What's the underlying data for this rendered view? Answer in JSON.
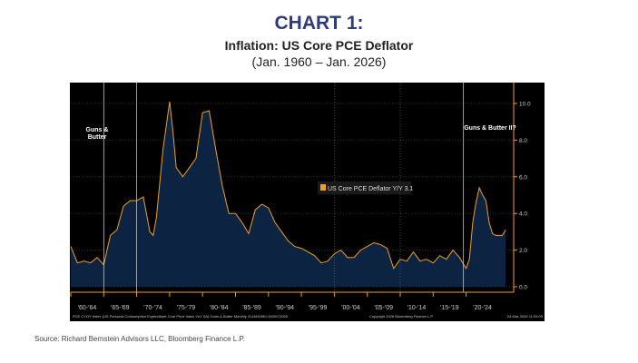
{
  "header": {
    "title": "CHART 1:",
    "subtitle": "Inflation: US Core PCE Deflator",
    "date_range": "(Jan. 1960 – Jan. 2026)"
  },
  "source": "Source: Richard Bernstein Advisors LLC, Bloomberg Finance L.P.",
  "chart_data": {
    "type": "area",
    "title": "Inflation: US Core PCE Deflator",
    "xlabel": "",
    "ylabel": "",
    "ylim": [
      0,
      10
    ],
    "yticks": [
      "0.0",
      "2.0",
      "4.0",
      "6.0",
      "8.0",
      "10.0"
    ],
    "xlim": [
      1960,
      2026
    ],
    "xtick_labels": [
      "'60-'64",
      "'65-'69",
      "'70-'74",
      "'75-'79",
      "'80-'84",
      "'85-'89",
      "'90-'94",
      "'95-'99",
      "'00-'04",
      "'05-'09",
      "'10-'14",
      "'15-'19",
      "'20-'24"
    ],
    "legend": {
      "label": "US Core PCE Deflator Y/Y",
      "last_value": "3.1",
      "position": "center-right"
    },
    "annotations": [
      "Guns & Butter",
      "Guns & Butter II?"
    ],
    "footer_left": "PCE CYOY Index (US Personal Consumption Expenditure Core Price Index YoY SA) Guns & Butter Monthly 31JAN1960-31DEC2026",
    "footer_mid": "Copyright 2026 Bloomberg Finance L.P.",
    "footer_right": "24-Mar-2026 11:05:09",
    "colors": {
      "line": "#f0a020",
      "fill": "#0c2442",
      "background": "#000000"
    },
    "series": [
      {
        "name": "US Core PCE Deflator Y/Y",
        "x": [
          1960,
          1961,
          1962,
          1963,
          1964,
          1965,
          1966,
          1967,
          1968,
          1969,
          1970,
          1971,
          1972,
          1972.5,
          1973,
          1974,
          1975,
          1975.5,
          1976,
          1977,
          1978,
          1979,
          1980,
          1981,
          1982,
          1983,
          1984,
          1985,
          1986,
          1987,
          1988,
          1989,
          1990,
          1991,
          1992,
          1993,
          1994,
          1995,
          1996,
          1997,
          1998,
          1999,
          2000,
          2001,
          2002,
          2003,
          2004,
          2005,
          2006,
          2007,
          2008,
          2009,
          2010,
          2011,
          2012,
          2013,
          2014,
          2015,
          2016,
          2017,
          2018,
          2019,
          2020,
          2020.5,
          2021,
          2021.5,
          2022,
          2022.5,
          2023,
          2023.5,
          2024,
          2024.5,
          2025,
          2025.5,
          2026
        ],
        "y": [
          2.2,
          1.3,
          1.4,
          1.3,
          1.6,
          1.2,
          2.8,
          3.1,
          4.4,
          4.7,
          4.7,
          4.9,
          3.0,
          2.8,
          3.8,
          7.5,
          10.1,
          8.5,
          6.5,
          6.0,
          6.5,
          7.0,
          9.5,
          9.6,
          7.5,
          5.5,
          4.0,
          4.0,
          3.5,
          2.9,
          4.2,
          4.5,
          4.3,
          3.5,
          3.0,
          2.5,
          2.2,
          2.1,
          1.9,
          1.7,
          1.3,
          1.4,
          1.8,
          2.0,
          1.6,
          1.6,
          2.0,
          2.2,
          2.4,
          2.3,
          2.1,
          1.0,
          1.5,
          1.4,
          1.9,
          1.4,
          1.5,
          1.3,
          1.7,
          1.5,
          2.0,
          1.6,
          1.0,
          1.5,
          3.5,
          4.6,
          5.4,
          5.0,
          4.7,
          3.5,
          2.9,
          2.8,
          2.8,
          2.8,
          3.1
        ]
      }
    ]
  }
}
